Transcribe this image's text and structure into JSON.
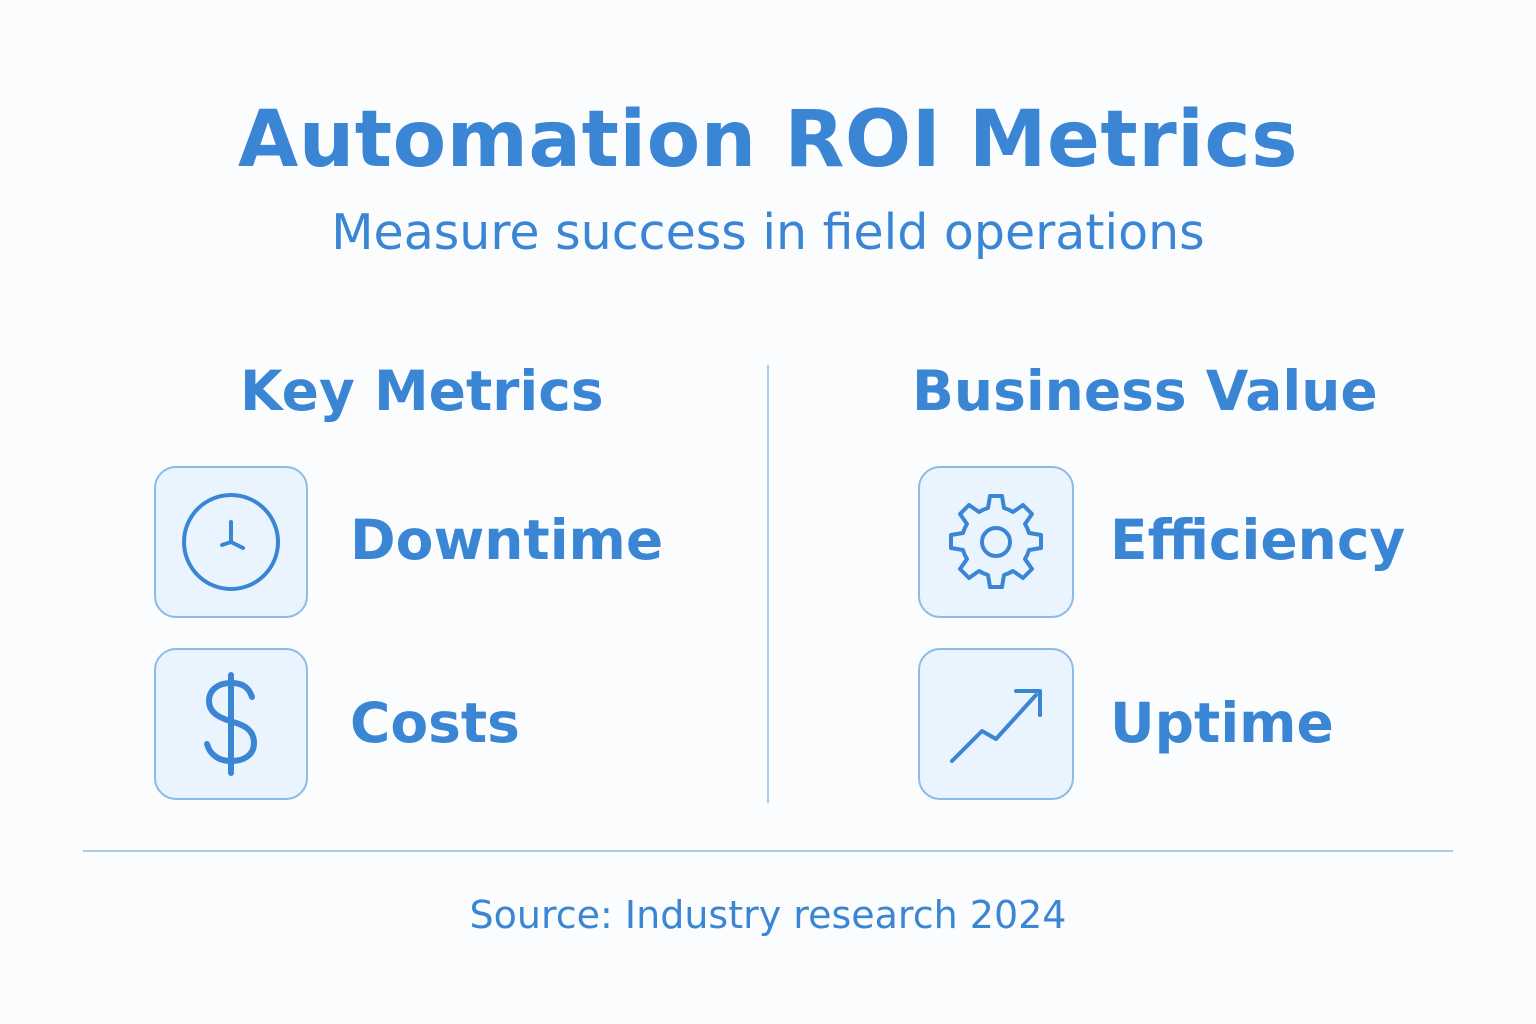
{
  "title": "Automation ROI Metrics",
  "subtitle": "Measure success in field operations",
  "columns": {
    "left": {
      "heading": "Key Metrics",
      "items": [
        {
          "label": "Downtime",
          "icon": "clock-icon"
        },
        {
          "label": "Costs",
          "icon": "dollar-icon"
        }
      ]
    },
    "right": {
      "heading": "Business Value",
      "items": [
        {
          "label": "Efficiency",
          "icon": "gear-icon"
        },
        {
          "label": "Uptime",
          "icon": "trend-up-icon"
        }
      ]
    }
  },
  "source": "Source: Industry research 2024",
  "colors": {
    "accent": "#3a86d4",
    "tile_fill": "#eaf4fe",
    "tile_border": "#8cbbe6",
    "divider": "#a9cbeb"
  }
}
